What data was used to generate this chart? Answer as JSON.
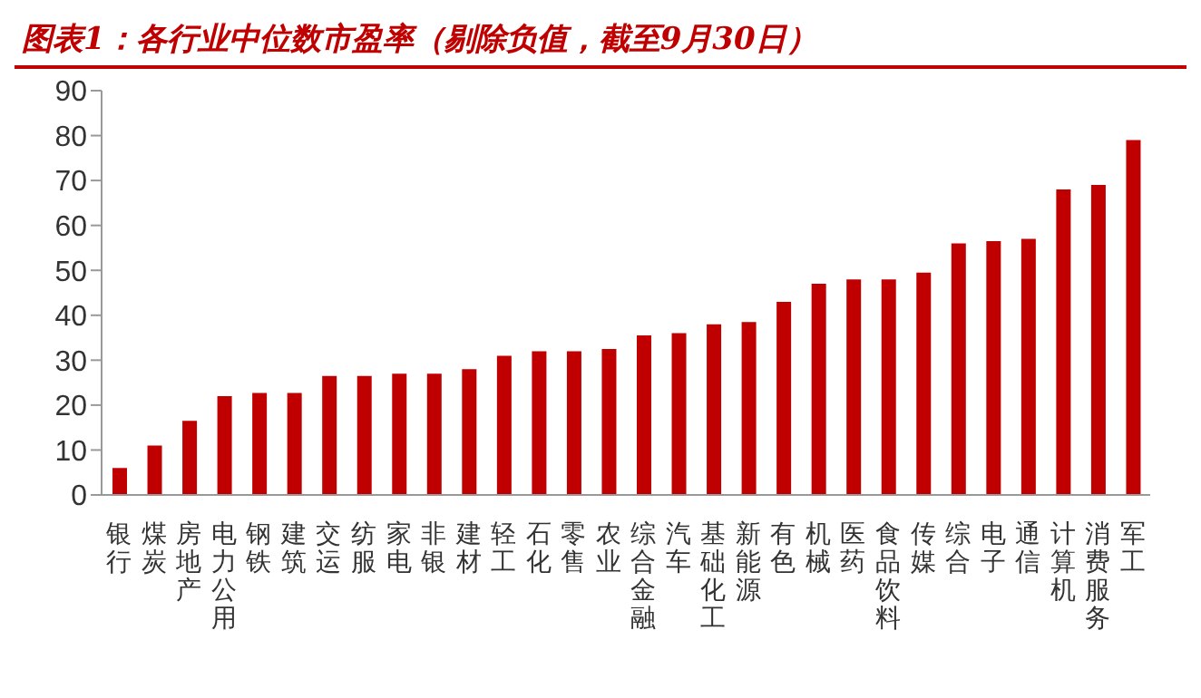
{
  "chart_data": {
    "type": "bar",
    "title": "图表1：各行业中位数市盈率（剔除负值，截至9月30日）",
    "categories": [
      "银行",
      "煤炭",
      "房地产",
      "电力公用",
      "钢铁",
      "建筑",
      "交运",
      "纺服",
      "家电",
      "非银",
      "建材",
      "轻工",
      "石化",
      "零售",
      "农业",
      "综合金融",
      "汽车",
      "基础化工",
      "新能源",
      "有色",
      "机械",
      "医药",
      "食品饮料",
      "传媒",
      "综合",
      "电子",
      "通信",
      "计算机",
      "消费服务",
      "军工"
    ],
    "values": [
      6,
      11,
      16.5,
      22,
      22.7,
      22.7,
      26.5,
      26.5,
      27,
      27,
      28,
      31,
      32,
      32,
      32.5,
      35.5,
      36,
      38,
      38.5,
      43,
      47,
      48,
      48,
      49.5,
      56,
      56.5,
      57,
      68,
      69,
      79
    ],
    "color": "#c00000",
    "ylim": [
      0,
      90
    ],
    "yticks": [
      0,
      10,
      20,
      30,
      40,
      50,
      60,
      70,
      80,
      90
    ],
    "grid": false,
    "legend": false
  }
}
